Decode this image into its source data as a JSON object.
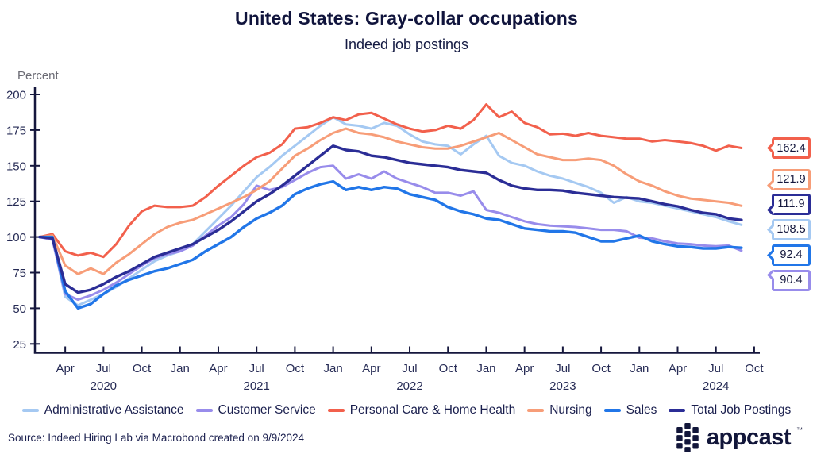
{
  "header": {
    "title": "United States: Gray-collar occupations",
    "subtitle": "Indeed job postings"
  },
  "chart_data": {
    "type": "line",
    "title": "United States: Gray-collar occupations",
    "subtitle": "Indeed job postings",
    "ylabel": "Percent",
    "ylim": [
      25,
      200
    ],
    "yticks": [
      200,
      175,
      150,
      125,
      100,
      75,
      50,
      25
    ],
    "x_start": "2020-02",
    "x_interval": "month",
    "grid": false,
    "legend_position": "bottom",
    "xticks": [
      {
        "m": 2,
        "label": "Apr"
      },
      {
        "m": 5,
        "label": "Jul"
      },
      {
        "m": 8,
        "label": "Oct"
      },
      {
        "m": 11,
        "label": "Jan"
      },
      {
        "m": 14,
        "label": "Apr"
      },
      {
        "m": 17,
        "label": "Jul"
      },
      {
        "m": 20,
        "label": "Oct"
      },
      {
        "m": 23,
        "label": "Jan"
      },
      {
        "m": 26,
        "label": "Apr"
      },
      {
        "m": 29,
        "label": "Jul"
      },
      {
        "m": 32,
        "label": "Oct"
      },
      {
        "m": 35,
        "label": "Jan"
      },
      {
        "m": 38,
        "label": "Apr"
      },
      {
        "m": 41,
        "label": "Jul"
      },
      {
        "m": 44,
        "label": "Oct"
      },
      {
        "m": 47,
        "label": "Jan"
      },
      {
        "m": 50,
        "label": "Apr"
      },
      {
        "m": 53,
        "label": "Jul"
      },
      {
        "m": 56,
        "label": "Oct"
      }
    ],
    "years": [
      {
        "m": 5,
        "label": "2020"
      },
      {
        "m": 17,
        "label": "2021"
      },
      {
        "m": 29,
        "label": "2022"
      },
      {
        "m": 41,
        "label": "2023"
      },
      {
        "m": 53,
        "label": "2024"
      }
    ],
    "series": [
      {
        "name": "Administrative Assistance",
        "color": "#a5c9f2",
        "end_label": "108.5",
        "values": [
          100,
          99,
          58,
          52,
          56,
          60,
          65,
          71,
          77,
          83,
          87,
          90,
          95,
          104,
          113,
          122,
          132,
          142,
          149,
          157,
          164,
          171,
          178,
          184,
          179,
          178,
          176,
          180,
          178,
          172,
          167,
          165,
          164,
          158,
          165,
          171,
          157,
          152,
          150,
          146,
          143,
          141,
          138,
          135,
          131,
          124,
          128,
          125,
          124,
          122,
          120,
          118,
          116,
          114,
          111,
          108.5
        ]
      },
      {
        "name": "Customer Service",
        "color": "#988ceb",
        "end_label": "90.4",
        "values": [
          100,
          98,
          60,
          56,
          59,
          63,
          68,
          74,
          80,
          85,
          88,
          90,
          94,
          101,
          108,
          114,
          123,
          136,
          133,
          135,
          140,
          145,
          149,
          150,
          141,
          144,
          141,
          146,
          141,
          138,
          135,
          131,
          131,
          129,
          132,
          119,
          117,
          114,
          111,
          109,
          108,
          107.5,
          107,
          106,
          105,
          105,
          104,
          99.5,
          99,
          97,
          95.5,
          95,
          94,
          93.5,
          94,
          90.4
        ]
      },
      {
        "name": "Personal Care & Home Health",
        "color": "#f2604c",
        "end_label": "162.4",
        "values": [
          100,
          102,
          90,
          87,
          89,
          86,
          95,
          108,
          118,
          122,
          121,
          121,
          122,
          128,
          136,
          143,
          150,
          156,
          159,
          165,
          176,
          177,
          180,
          184,
          182,
          186,
          187,
          183,
          179,
          176,
          174,
          175,
          178,
          176,
          182,
          193,
          184,
          188,
          180,
          177,
          172,
          172.5,
          171,
          173,
          171,
          170,
          169,
          169,
          167,
          168,
          167,
          166,
          164,
          160.5,
          164,
          162.4
        ]
      },
      {
        "name": "Nursing",
        "color": "#f79d78",
        "end_label": "121.9",
        "values": [
          100,
          101,
          80,
          74,
          78,
          74,
          82,
          88,
          95,
          102,
          107,
          110,
          112,
          116,
          120,
          124,
          128,
          133,
          139,
          148,
          157,
          162,
          168,
          173,
          176,
          173,
          172,
          170,
          167,
          165,
          163,
          162,
          162,
          164,
          167,
          170,
          173,
          168,
          163,
          158,
          156,
          154,
          154,
          155,
          154,
          150,
          144,
          139,
          136,
          132,
          129,
          127,
          126,
          125,
          124,
          121.9
        ]
      },
      {
        "name": "Sales",
        "color": "#2176e8",
        "end_label": "92.4",
        "values": [
          100,
          100,
          62,
          50,
          53,
          60,
          66,
          70,
          73,
          76,
          78,
          81,
          84,
          90,
          95,
          100,
          107,
          113,
          117,
          122,
          130,
          134,
          137,
          139,
          133,
          135,
          133,
          135,
          134,
          130,
          128,
          126,
          121,
          118,
          116,
          113,
          112,
          109,
          106,
          105,
          104,
          104,
          103,
          100,
          97,
          97,
          99,
          101,
          97,
          95,
          93.5,
          93,
          92,
          92,
          93,
          92.4
        ]
      },
      {
        "name": "Total Job Postings",
        "color": "#2b2d96",
        "end_label": "111.9",
        "values": [
          100,
          99,
          67,
          61,
          63,
          67,
          72,
          76,
          81,
          86,
          89,
          92,
          95,
          100,
          105,
          111,
          118,
          125,
          130,
          136,
          143,
          150,
          157,
          164,
          161,
          160,
          157,
          156,
          154,
          152,
          151,
          150,
          149,
          147,
          146,
          145,
          140,
          136,
          134,
          133,
          133,
          132.5,
          131,
          130,
          129,
          128,
          127.5,
          127,
          125,
          123,
          121.5,
          119,
          117,
          116,
          113,
          111.9
        ]
      }
    ]
  },
  "footer": {
    "source": "Source: Indeed Hiring Lab via Macrobond created on 9/9/2024",
    "brand_text": "appcast",
    "trademark": "™"
  }
}
